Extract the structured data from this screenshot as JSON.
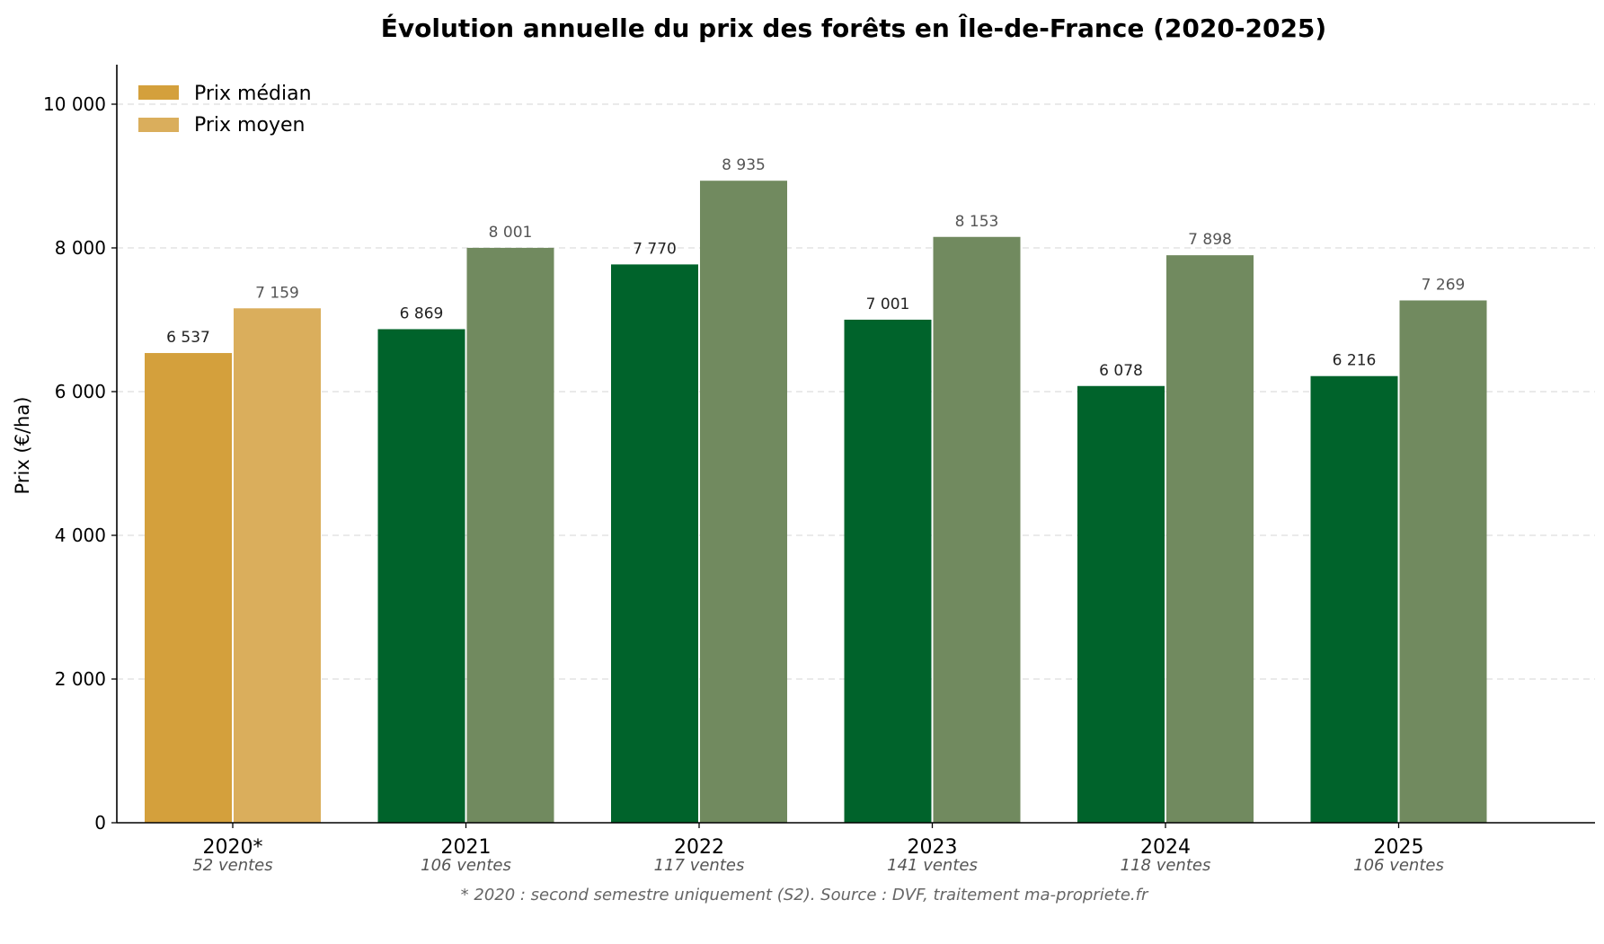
{
  "chart_data": {
    "type": "bar",
    "title": "Évolution annuelle du prix des forêts en Île-de-France (2020-2025)",
    "ylabel": "Prix (€/ha)",
    "xlabel": "",
    "ylim": [
      0,
      10500
    ],
    "yticks": [
      0,
      2000,
      4000,
      6000,
      8000,
      10000
    ],
    "ytick_labels": [
      "0",
      "2 000",
      "4 000",
      "6 000",
      "8 000",
      "10 000"
    ],
    "grid": "horizontal dashed",
    "legend_position": "top-left",
    "categories": [
      "2020*",
      "2021",
      "2022",
      "2023",
      "2024",
      "2025"
    ],
    "sales_labels": [
      "52 ventes",
      "106 ventes",
      "117 ventes",
      "141 ventes",
      "118 ventes",
      "106 ventes"
    ],
    "series": [
      {
        "name": "Prix médian",
        "values": [
          6537,
          6869,
          7770,
          7001,
          6078,
          6216
        ],
        "labels": [
          "6 537",
          "6 869",
          "7 770",
          "7 001",
          "6 078",
          "6 216"
        ]
      },
      {
        "name": "Prix moyen",
        "values": [
          7159,
          8001,
          8935,
          8153,
          7898,
          7269
        ],
        "labels": [
          "7 159",
          "8 001",
          "8 935",
          "8 153",
          "7 898",
          "7 269"
        ]
      }
    ],
    "colors": {
      "median_first": "#D4A03C",
      "mean_first": "#DAAE5C",
      "median": "#00632B",
      "mean": "#718A5F",
      "grid": "#DDDDDD",
      "axis": "#000000"
    },
    "footnote": "* 2020 : second semestre uniquement (S2). Source : DVF, traitement ma-propriete.fr"
  }
}
